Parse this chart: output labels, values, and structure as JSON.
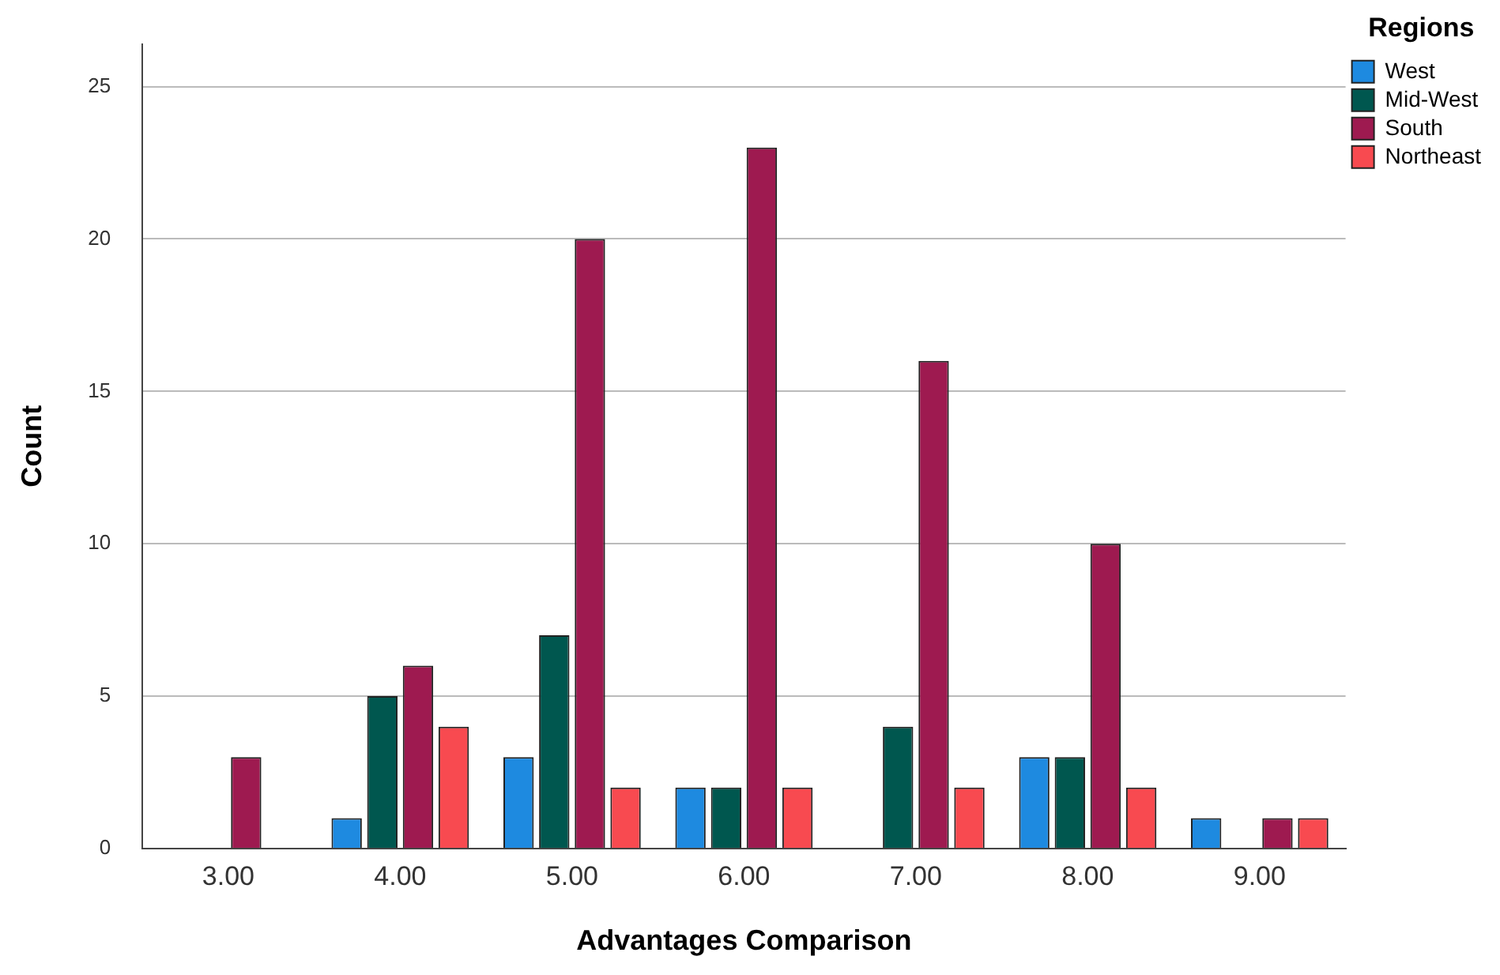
{
  "chart_data": {
    "type": "bar",
    "xlabel": "Advantages Comparison",
    "ylabel": "Count",
    "legend_title": "Regions",
    "categories": [
      "3.00",
      "4.00",
      "5.00",
      "6.00",
      "7.00",
      "8.00",
      "9.00"
    ],
    "series": [
      {
        "name": "West",
        "color": "#1e8ae0",
        "values": [
          0,
          1,
          3,
          2,
          0,
          3,
          1
        ]
      },
      {
        "name": "Mid-West",
        "color": "#00574f",
        "values": [
          0,
          5,
          7,
          2,
          4,
          3,
          0
        ]
      },
      {
        "name": "South",
        "color": "#9e1a50",
        "values": [
          3,
          6,
          20,
          23,
          16,
          10,
          1
        ]
      },
      {
        "name": "Northeast",
        "color": "#f84a50",
        "values": [
          0,
          4,
          2,
          2,
          2,
          2,
          1
        ]
      }
    ],
    "ylim": [
      0,
      26.4
    ],
    "yticks": [
      0,
      5,
      10,
      15,
      20,
      25
    ],
    "grid": "y",
    "legend": "top right"
  }
}
